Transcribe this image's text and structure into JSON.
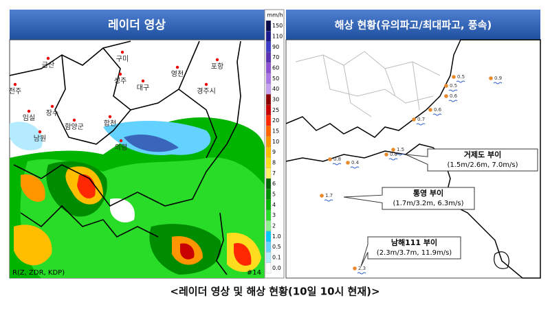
{
  "radar": {
    "title": "레이더 영상",
    "legend": {
      "unit": "mm/h",
      "items": [
        {
          "label": "150",
          "color": "#0a0a46"
        },
        {
          "label": "110",
          "color": "#1c1c8c"
        },
        {
          "label": "90",
          "color": "#3c3cc8"
        },
        {
          "label": "70",
          "color": "#5a32b4"
        },
        {
          "label": "60",
          "color": "#8c50d2"
        },
        {
          "label": "50",
          "color": "#aa78e6"
        },
        {
          "label": "40",
          "color": "#c8a0f0"
        },
        {
          "label": "30",
          "color": "#8c0000"
        },
        {
          "label": "25",
          "color": "#c80000"
        },
        {
          "label": "20",
          "color": "#ff2800"
        },
        {
          "label": "15",
          "color": "#ff6400"
        },
        {
          "label": "10",
          "color": "#ff9600"
        },
        {
          "label": "9",
          "color": "#ffbe00"
        },
        {
          "label": "8",
          "color": "#ffdc1e"
        },
        {
          "label": "7",
          "color": "#fff064"
        },
        {
          "label": "6",
          "color": "#006400"
        },
        {
          "label": "5",
          "color": "#008c00"
        },
        {
          "label": "4",
          "color": "#00b400"
        },
        {
          "label": "3",
          "color": "#28dc28"
        },
        {
          "label": "2",
          "color": "#8cf08c"
        },
        {
          "label": "1.0",
          "color": "#00c8ff"
        },
        {
          "label": "0.5",
          "color": "#64d2ff"
        },
        {
          "label": "0.1",
          "color": "#b4ebff"
        },
        {
          "label": "0.0",
          "color": "#ffffff"
        }
      ]
    },
    "places": [
      "금산",
      "전주",
      "구미",
      "성주",
      "대구",
      "영천",
      "포항",
      "경주시",
      "장수",
      "임실",
      "함양군",
      "합천",
      "남원",
      "의령"
    ],
    "footer": "R(Z, ZDR, KDP)",
    "frame": "#14"
  },
  "sea": {
    "title": "해상 현황(유의파고/최대파고, 풍속)",
    "wave_labels": [
      "0.5",
      "0.9",
      "0.5",
      "0.6",
      "0.6",
      "0.7",
      "1.5",
      "0.6",
      "0.4",
      "0.8",
      "1.7",
      "2.3"
    ],
    "buoys": [
      {
        "name": "거제도 부이",
        "detail": "(1.5m/2.6m, 7.0m/s)"
      },
      {
        "name": "통영 부이",
        "detail": "(1.7m/3.2m, 6.3m/s)"
      },
      {
        "name": "남해111 부이",
        "detail": "(2.3m/3.7m, 11.9m/s)"
      }
    ]
  },
  "caption": "<레이더 영상 및 해상 현황(10일 10시 현재)>"
}
